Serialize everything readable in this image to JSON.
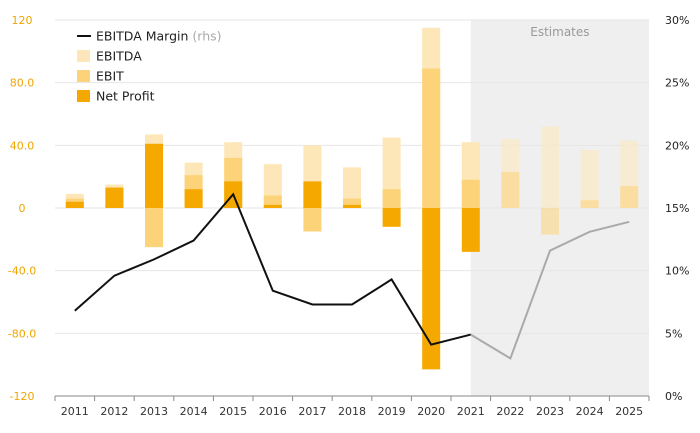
{
  "chart_data": {
    "type": "bar",
    "x": [
      "2011",
      "2012",
      "2013",
      "2014",
      "2015",
      "2016",
      "2017",
      "2018",
      "2019",
      "2020",
      "2021",
      "2022",
      "2023",
      "2024",
      "2025"
    ],
    "estimates_label": "Estimates",
    "estimates_from": "2021",
    "left_axis": {
      "ticks": [
        "120",
        "80.0",
        "40.0",
        "0",
        "-40.0",
        "-80.0",
        "-120"
      ],
      "tick_values": [
        120,
        80,
        40,
        0,
        -40,
        -80,
        -120
      ],
      "ylim": [
        -120,
        120
      ]
    },
    "right_axis": {
      "ticks": [
        "30%",
        "25%",
        "20%",
        "15%",
        "10%",
        "5%",
        "0%"
      ],
      "tick_values": [
        30,
        25,
        20,
        15,
        10,
        5,
        0
      ],
      "ylim": [
        0,
        30
      ]
    },
    "series": [
      {
        "name": "EBITDA",
        "type": "bar",
        "color": "#fde7b8",
        "values": [
          9,
          15,
          47,
          29,
          42,
          28,
          40,
          26,
          45,
          115,
          42,
          44,
          52,
          37,
          43
        ]
      },
      {
        "name": "EBIT",
        "type": "bar",
        "color": "#fdd37a",
        "values": [
          6,
          13,
          -25,
          21,
          32,
          8,
          -15,
          6,
          12,
          89,
          18,
          23,
          -17,
          5,
          14
        ]
      },
      {
        "name": "Net Profit",
        "type": "bar",
        "color": "#f5a800",
        "values": [
          4,
          13,
          41,
          12,
          17,
          2,
          17,
          2,
          -12,
          -103,
          -28,
          0,
          0,
          0,
          0
        ]
      },
      {
        "name": "EBITDA Margin",
        "name_note": "(rhs)",
        "type": "line",
        "axis": "right",
        "color": "#111111",
        "estimate_color": "#aaaaaa",
        "values": [
          6.8,
          9.6,
          10.9,
          12.4,
          16.1,
          8.4,
          7.3,
          7.3,
          9.3,
          4.1,
          4.9,
          3.0,
          11.6,
          13.1,
          13.9
        ]
      }
    ]
  }
}
